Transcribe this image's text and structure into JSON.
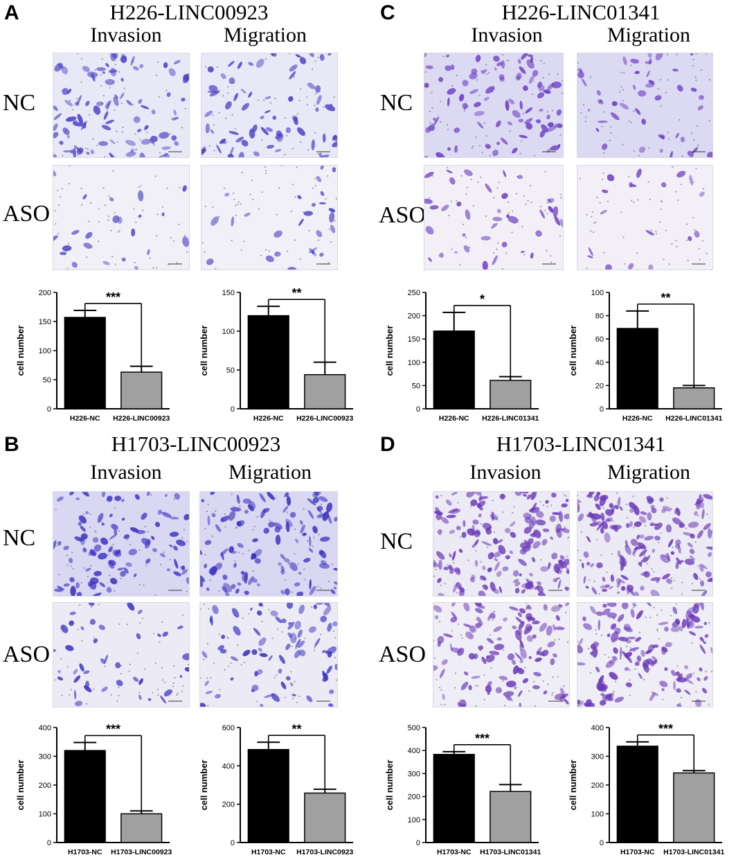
{
  "panels": [
    {
      "label": "A",
      "title": "H226-LINC00923",
      "col_labels": [
        "Invasion",
        "Migration"
      ],
      "row_labels": [
        "NC",
        "ASO"
      ],
      "image_tints": {
        "nc_bg": "#e9e8f6",
        "aso_bg": "#f1f0f6",
        "cell": "#4a3fc4"
      },
      "charts": [
        {
          "type": "bar",
          "categories": [
            "H226-NC",
            "H226-LINC00923"
          ],
          "values": [
            157,
            63
          ],
          "errors": [
            12,
            10
          ],
          "ylim": [
            0,
            200
          ],
          "ticks": [
            0,
            50,
            100,
            150,
            200
          ],
          "ylabel": "cell number",
          "significance": "***",
          "colors": [
            "#000000",
            "#a0a0a0"
          ]
        },
        {
          "type": "bar",
          "categories": [
            "H226-NC",
            "H226-LINC00923"
          ],
          "values": [
            120,
            44
          ],
          "errors": [
            12,
            16
          ],
          "ylim": [
            0,
            150
          ],
          "ticks": [
            0,
            50,
            100,
            150
          ],
          "ylabel": "cell number",
          "significance": "**",
          "colors": [
            "#000000",
            "#a0a0a0"
          ]
        }
      ]
    },
    {
      "label": "B",
      "title": "H1703-LINC00923",
      "col_labels": [
        "Invasion",
        "Migration"
      ],
      "row_labels": [
        "NC",
        "ASO"
      ],
      "image_tints": {
        "nc_bg": "#d9d7f2",
        "aso_bg": "#ecebf5",
        "cell": "#3d33c0"
      },
      "charts": [
        {
          "type": "bar",
          "categories": [
            "H1703-NC",
            "H1703-LINC00923"
          ],
          "values": [
            320,
            100
          ],
          "errors": [
            28,
            10
          ],
          "ylim": [
            0,
            400
          ],
          "ticks": [
            0,
            100,
            200,
            300,
            400
          ],
          "ylabel": "cell number",
          "significance": "***",
          "colors": [
            "#000000",
            "#a0a0a0"
          ]
        },
        {
          "type": "bar",
          "categories": [
            "H1703-NC",
            "H1703-LINC0923"
          ],
          "values": [
            485,
            258
          ],
          "errors": [
            38,
            20
          ],
          "ylim": [
            0,
            600
          ],
          "ticks": [
            0,
            200,
            400,
            600
          ],
          "ylabel": "cell number",
          "significance": "**",
          "colors": [
            "#000000",
            "#a0a0a0"
          ]
        }
      ]
    },
    {
      "label": "C",
      "title": "H226-LINC01341",
      "col_labels": [
        "Invasion",
        "Migration"
      ],
      "row_labels": [
        "NC",
        "ASO"
      ],
      "image_tints": {
        "nc_bg": "#dcdaf2",
        "aso_bg": "#f2f0f6",
        "cell": "#6a3ac2"
      },
      "charts": [
        {
          "type": "bar",
          "categories": [
            "H226-NC",
            "H226-LINC01341"
          ],
          "values": [
            167,
            61
          ],
          "errors": [
            40,
            8
          ],
          "ylim": [
            0,
            250
          ],
          "ticks": [
            0,
            50,
            100,
            150,
            200,
            250
          ],
          "ylabel": "cell number",
          "significance": "*",
          "colors": [
            "#000000",
            "#a0a0a0"
          ]
        },
        {
          "type": "bar",
          "categories": [
            "H226-NC",
            "H226-LINC01341"
          ],
          "values": [
            69,
            18
          ],
          "errors": [
            15,
            2
          ],
          "ylim": [
            0,
            100
          ],
          "ticks": [
            0,
            20,
            40,
            60,
            80,
            100
          ],
          "ylabel": "cell number",
          "significance": "**",
          "colors": [
            "#000000",
            "#a0a0a0"
          ]
        }
      ]
    },
    {
      "label": "D",
      "title": "H1703-LINC01341",
      "col_labels": [
        "Invasion",
        "Migration"
      ],
      "row_labels": [
        "NC",
        "ASO"
      ],
      "image_tints": {
        "nc_bg": "#eceaf4",
        "aso_bg": "#efedf5",
        "cell": "#6a3ab8"
      },
      "charts": [
        {
          "type": "bar",
          "categories": [
            "H1703-NC",
            "H1703-LINC01341"
          ],
          "values": [
            383,
            222
          ],
          "errors": [
            12,
            30
          ],
          "ylim": [
            0,
            500
          ],
          "ticks": [
            0,
            100,
            200,
            300,
            400,
            500
          ],
          "ylabel": "cell number",
          "significance": "***",
          "colors": [
            "#000000",
            "#a0a0a0"
          ]
        },
        {
          "type": "bar",
          "categories": [
            "H1703-NC",
            "H1703-LINC01341"
          ],
          "values": [
            335,
            242
          ],
          "errors": [
            15,
            8
          ],
          "ylim": [
            0,
            400
          ],
          "ticks": [
            0,
            100,
            200,
            300,
            400
          ],
          "ylabel": "cell number",
          "significance": "***",
          "colors": [
            "#000000",
            "#a0a0a0"
          ]
        }
      ]
    }
  ]
}
